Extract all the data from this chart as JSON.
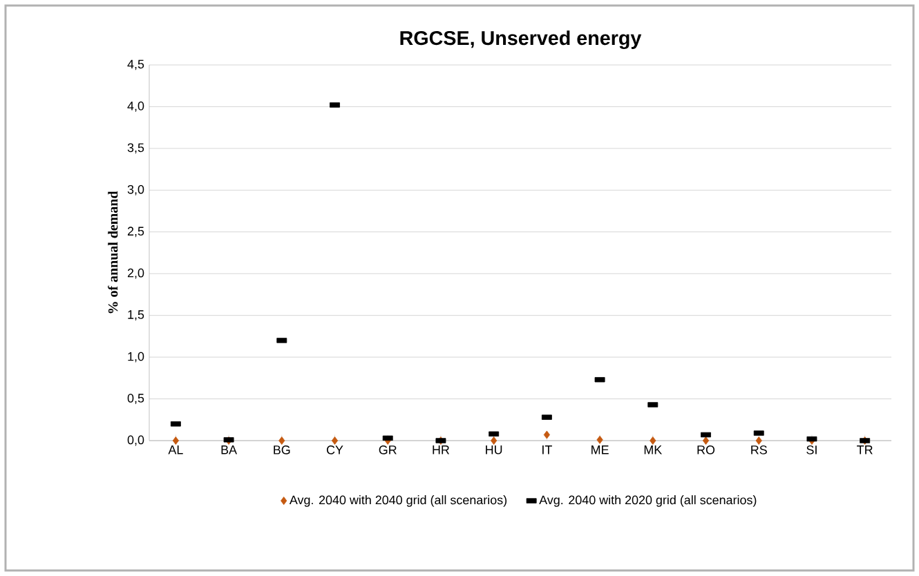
{
  "chart_data": {
    "type": "scatter",
    "title": "RGCSE, Unserved energy",
    "ylabel": "% of annual demand",
    "categories": [
      "AL",
      "BA",
      "BG",
      "CY",
      "GR",
      "HR",
      "HU",
      "IT",
      "ME",
      "MK",
      "RO",
      "RS",
      "SI",
      "TR"
    ],
    "series": [
      {
        "name": "Avg. 2040 with 2040 grid (all scenarios)",
        "color": "#c55a11",
        "marker": "diamond",
        "values": [
          0,
          0,
          0,
          0,
          0,
          0,
          0,
          0.07,
          0.01,
          0,
          0,
          0,
          0,
          0
        ]
      },
      {
        "name": "Avg. 2040 with 2020 grid (all scenarios)",
        "color": "#000000",
        "marker": "square",
        "values": [
          0.2,
          0.01,
          1.2,
          4.02,
          0.03,
          0.0,
          0.08,
          0.28,
          0.73,
          0.43,
          0.07,
          0.09,
          0.02,
          0.0
        ]
      }
    ],
    "ylim": [
      0,
      4.5
    ],
    "yticks": [
      {
        "value": 0,
        "label": "0,0"
      },
      {
        "value": 0.5,
        "label": "0,5"
      },
      {
        "value": 1,
        "label": "1,0"
      },
      {
        "value": 1.5,
        "label": "1,5"
      },
      {
        "value": 2,
        "label": "2,0"
      },
      {
        "value": 2.5,
        "label": "2,5"
      },
      {
        "value": 3,
        "label": "3,0"
      },
      {
        "value": 3.5,
        "label": "3,5"
      },
      {
        "value": 4,
        "label": "4,0"
      },
      {
        "value": 4.5,
        "label": "4,5"
      }
    ],
    "grid": "y",
    "legend": "bottom"
  }
}
